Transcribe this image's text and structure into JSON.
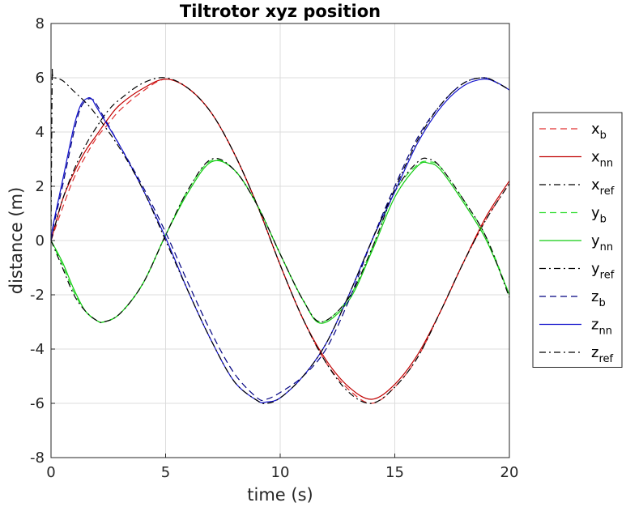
{
  "chart_data": {
    "type": "line",
    "title": "Tiltrotor xyz position",
    "xlabel": "time (s)",
    "ylabel": "distance (m)",
    "xlim": [
      0,
      20
    ],
    "ylim": [
      -8,
      8
    ],
    "xticks": [
      0,
      5,
      10,
      15,
      20
    ],
    "yticks": [
      -8,
      -6,
      -4,
      -2,
      0,
      2,
      4,
      6,
      8
    ],
    "grid": true,
    "legend_position": "outside-right",
    "series": [
      {
        "name": "x",
        "sub": "b",
        "color": "#e03030",
        "dash": "dashed",
        "x": [
          0,
          0.5,
          1,
          1.5,
          2,
          2.5,
          3,
          4,
          5,
          6,
          7,
          8,
          9,
          10,
          11,
          12,
          13,
          14,
          15,
          16,
          17,
          18,
          19,
          20
        ],
        "y": [
          0,
          1.2,
          2.3,
          3.1,
          3.8,
          4.3,
          4.8,
          5.5,
          5.95,
          5.6,
          4.7,
          3.2,
          1.3,
          -0.9,
          -2.9,
          -4.5,
          -5.5,
          -6.0,
          -5.4,
          -4.3,
          -2.6,
          -0.8,
          0.8,
          2.1
        ]
      },
      {
        "name": "x",
        "sub": "nn",
        "color": "#c00000",
        "dash": "solid",
        "x": [
          0,
          0.5,
          1,
          1.5,
          2,
          2.5,
          3,
          4,
          5,
          6,
          7,
          8,
          9,
          10,
          11,
          12,
          13,
          14,
          15,
          16,
          17,
          18,
          19,
          20
        ],
        "y": [
          0,
          1.5,
          2.5,
          3.3,
          3.9,
          4.5,
          5.0,
          5.6,
          5.95,
          5.6,
          4.7,
          3.2,
          1.3,
          -0.9,
          -2.9,
          -4.4,
          -5.4,
          -5.85,
          -5.3,
          -4.2,
          -2.6,
          -0.8,
          0.9,
          2.2
        ]
      },
      {
        "name": "x",
        "sub": "ref",
        "color": "#000000",
        "dash": "dashdot",
        "x": [
          0,
          0.5,
          1,
          1.5,
          2,
          2.5,
          3,
          4,
          5,
          6,
          7,
          8,
          9,
          10,
          11,
          12,
          13,
          14,
          15,
          16,
          17,
          18,
          19,
          20
        ],
        "y": [
          0,
          1.5,
          2.6,
          3.5,
          4.2,
          4.8,
          5.2,
          5.8,
          6.0,
          5.6,
          4.7,
          3.2,
          1.3,
          -0.9,
          -2.9,
          -4.5,
          -5.6,
          -6.0,
          -5.4,
          -4.3,
          -2.6,
          -0.8,
          0.8,
          2.1
        ]
      },
      {
        "name": "y",
        "sub": "b",
        "color": "#33dd33",
        "dash": "dashed",
        "x": [
          0,
          0.5,
          1,
          1.5,
          2,
          2.3,
          3,
          4,
          5,
          6,
          7,
          8,
          9,
          10,
          11,
          11.8,
          13,
          14,
          15,
          16,
          16.5,
          17,
          18,
          19,
          20
        ],
        "y": [
          0,
          -0.9,
          -1.9,
          -2.6,
          -2.95,
          -3.0,
          -2.7,
          -1.6,
          0.2,
          1.9,
          2.95,
          2.6,
          1.3,
          -0.5,
          -2.2,
          -3.0,
          -2.1,
          -0.3,
          1.8,
          2.8,
          2.9,
          2.7,
          1.5,
          0.1,
          -2.0
        ]
      },
      {
        "name": "y",
        "sub": "nn",
        "color": "#11cc11",
        "dash": "solid",
        "x": [
          0,
          0.5,
          1,
          1.5,
          2,
          2.3,
          3,
          4,
          5,
          6,
          7,
          8,
          9,
          10,
          11,
          11.8,
          13,
          14,
          15,
          16,
          16.5,
          17,
          18,
          19,
          20
        ],
        "y": [
          0,
          -0.8,
          -1.8,
          -2.6,
          -2.95,
          -3.0,
          -2.7,
          -1.6,
          0.2,
          1.8,
          2.9,
          2.6,
          1.3,
          -0.5,
          -2.2,
          -3.05,
          -2.2,
          -0.4,
          1.6,
          2.75,
          2.85,
          2.6,
          1.4,
          0.0,
          -2.0
        ]
      },
      {
        "name": "y",
        "sub": "ref",
        "color": "#000000",
        "dash": "dashdot",
        "x": [
          0,
          0.5,
          1,
          1.5,
          2,
          2.3,
          3,
          4,
          5,
          6,
          7,
          8,
          9,
          10,
          11,
          11.8,
          13,
          14,
          15,
          16,
          16.5,
          17,
          18,
          19,
          20
        ],
        "y": [
          0,
          -1.0,
          -2.0,
          -2.6,
          -2.95,
          -3.0,
          -2.7,
          -1.6,
          0.2,
          1.9,
          3.0,
          2.6,
          1.3,
          -0.5,
          -2.2,
          -3.0,
          -2.1,
          -0.3,
          1.8,
          2.9,
          3.0,
          2.7,
          1.5,
          0.1,
          -2.1
        ]
      },
      {
        "name": "z",
        "sub": "b",
        "color": "#000080",
        "dash": "dashed",
        "x": [
          0,
          0.1,
          0.5,
          1,
          1.3,
          1.6,
          1.8,
          2,
          3,
          4,
          5,
          6,
          7,
          8,
          9,
          9.4,
          10,
          11,
          12,
          13,
          14,
          15,
          16,
          17,
          18,
          18.9,
          19.5,
          20
        ],
        "y": [
          0,
          0.5,
          2.0,
          4.0,
          4.9,
          5.2,
          5.2,
          5.0,
          3.5,
          2.0,
          0.3,
          -1.6,
          -3.4,
          -4.9,
          -5.8,
          -5.85,
          -5.6,
          -5.0,
          -4.0,
          -2.2,
          0.0,
          2.0,
          3.8,
          5.0,
          5.8,
          6.0,
          5.8,
          5.55
        ]
      },
      {
        "name": "z",
        "sub": "nn",
        "color": "#1010cc",
        "dash": "solid",
        "x": [
          0,
          0.1,
          0.5,
          1,
          1.3,
          1.6,
          1.8,
          2,
          3,
          4,
          5,
          6,
          7,
          8,
          9,
          9.4,
          10,
          11,
          12,
          13,
          14,
          15,
          16,
          17,
          18,
          18.9,
          19.5,
          20
        ],
        "y": [
          0,
          0.6,
          2.2,
          4.2,
          5.0,
          5.25,
          5.2,
          4.9,
          3.5,
          1.9,
          0.1,
          -1.9,
          -3.7,
          -5.2,
          -5.9,
          -5.95,
          -5.8,
          -5.0,
          -3.8,
          -2.0,
          0.0,
          1.8,
          3.6,
          4.9,
          5.7,
          5.95,
          5.8,
          5.55
        ]
      },
      {
        "name": "z",
        "sub": "ref",
        "color": "#000000",
        "dash": "dashdot",
        "x": [
          0,
          0.05,
          0.1,
          0.5,
          1,
          1.5,
          2,
          3,
          4,
          5,
          6,
          7,
          8,
          9,
          9.4,
          10,
          11,
          12,
          13,
          14,
          15,
          16,
          17,
          18,
          18.9,
          19.5,
          20
        ],
        "y": [
          0,
          5.9,
          6.0,
          5.9,
          5.5,
          5.1,
          4.6,
          3.4,
          1.9,
          0.0,
          -1.9,
          -3.7,
          -5.2,
          -5.9,
          -6.0,
          -5.8,
          -5.0,
          -3.8,
          -2.0,
          0.0,
          1.9,
          3.7,
          5.0,
          5.8,
          6.0,
          5.8,
          5.55
        ]
      }
    ]
  }
}
